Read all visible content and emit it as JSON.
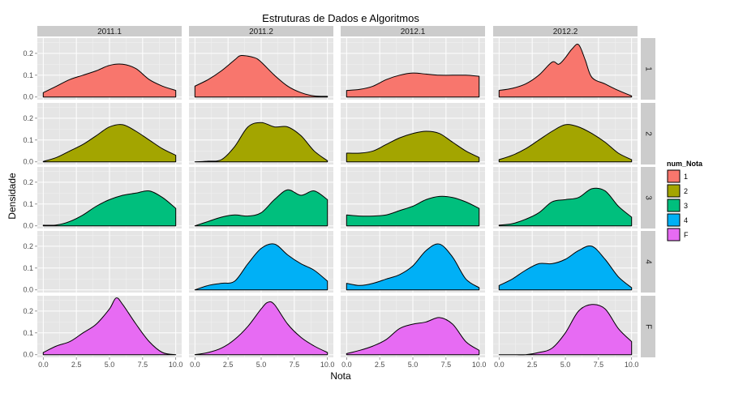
{
  "chart_data": {
    "type": "area",
    "title": "Estruturas de Dados e Algoritmos",
    "xlabel": "Nota",
    "ylabel": "Densidade",
    "xlim": [
      0,
      10
    ],
    "ylim": [
      0,
      0.27
    ],
    "x_ticks": [
      "0.0",
      "2.5",
      "5.0",
      "7.5",
      "10.0"
    ],
    "y_ticks": [
      "0.0",
      "0.1",
      "0.2"
    ],
    "grid": true,
    "facet_columns": [
      "2011.1",
      "2011.2",
      "2012.1",
      "2012.2"
    ],
    "facet_rows": [
      "1",
      "2",
      "3",
      "4",
      "F"
    ],
    "legend": {
      "title": "num_Nota",
      "position": "right",
      "items": [
        {
          "label": "1",
          "color": "#F8766D"
        },
        {
          "label": "2",
          "color": "#A3A500"
        },
        {
          "label": "3",
          "color": "#00BF7D"
        },
        {
          "label": "4",
          "color": "#00B0F6"
        },
        {
          "label": "F",
          "color": "#E76BF3"
        }
      ]
    },
    "panels": [
      {
        "row": "1",
        "col": "2011.1",
        "points": [
          [
            0,
            0.02
          ],
          [
            1,
            0.05
          ],
          [
            2,
            0.08
          ],
          [
            3,
            0.1
          ],
          [
            4,
            0.12
          ],
          [
            5,
            0.145
          ],
          [
            6,
            0.15
          ],
          [
            7,
            0.13
          ],
          [
            8,
            0.08
          ],
          [
            9,
            0.05
          ],
          [
            10,
            0.03
          ]
        ]
      },
      {
        "row": "1",
        "col": "2011.2",
        "points": [
          [
            0,
            0.05
          ],
          [
            1,
            0.08
          ],
          [
            2,
            0.12
          ],
          [
            3,
            0.17
          ],
          [
            3.5,
            0.19
          ],
          [
            4.5,
            0.18
          ],
          [
            5,
            0.16
          ],
          [
            6,
            0.1
          ],
          [
            7,
            0.05
          ],
          [
            8,
            0.02
          ],
          [
            9,
            0.005
          ],
          [
            10,
            0.003
          ]
        ]
      },
      {
        "row": "1",
        "col": "2012.1",
        "points": [
          [
            0,
            0.03
          ],
          [
            1,
            0.035
          ],
          [
            2,
            0.05
          ],
          [
            3,
            0.08
          ],
          [
            4,
            0.1
          ],
          [
            5,
            0.11
          ],
          [
            6,
            0.105
          ],
          [
            7,
            0.1
          ],
          [
            8,
            0.1
          ],
          [
            9,
            0.1
          ],
          [
            10,
            0.095
          ]
        ]
      },
      {
        "row": "1",
        "col": "2012.2",
        "points": [
          [
            0,
            0.03
          ],
          [
            1,
            0.04
          ],
          [
            2,
            0.06
          ],
          [
            3,
            0.1
          ],
          [
            4,
            0.16
          ],
          [
            4.5,
            0.15
          ],
          [
            5,
            0.18
          ],
          [
            5.5,
            0.22
          ],
          [
            6,
            0.24
          ],
          [
            6.5,
            0.17
          ],
          [
            7,
            0.09
          ],
          [
            8,
            0.06
          ],
          [
            9,
            0.03
          ],
          [
            10,
            0.005
          ]
        ]
      },
      {
        "row": "2",
        "col": "2011.1",
        "points": [
          [
            0,
            0.002
          ],
          [
            1,
            0.02
          ],
          [
            2,
            0.05
          ],
          [
            3,
            0.08
          ],
          [
            4,
            0.12
          ],
          [
            5,
            0.16
          ],
          [
            6,
            0.17
          ],
          [
            7,
            0.14
          ],
          [
            8,
            0.1
          ],
          [
            9,
            0.06
          ],
          [
            10,
            0.03
          ]
        ]
      },
      {
        "row": "2",
        "col": "2011.2",
        "points": [
          [
            0,
            0
          ],
          [
            1,
            0.003
          ],
          [
            2,
            0.01
          ],
          [
            3,
            0.07
          ],
          [
            4,
            0.16
          ],
          [
            5,
            0.18
          ],
          [
            6,
            0.16
          ],
          [
            7,
            0.16
          ],
          [
            8,
            0.12
          ],
          [
            9,
            0.05
          ],
          [
            10,
            0.005
          ]
        ]
      },
      {
        "row": "2",
        "col": "2012.1",
        "points": [
          [
            0,
            0.04
          ],
          [
            1,
            0.04
          ],
          [
            2,
            0.05
          ],
          [
            3,
            0.08
          ],
          [
            4,
            0.11
          ],
          [
            5,
            0.13
          ],
          [
            6,
            0.14
          ],
          [
            7,
            0.13
          ],
          [
            8,
            0.09
          ],
          [
            9,
            0.05
          ],
          [
            10,
            0.02
          ]
        ]
      },
      {
        "row": "2",
        "col": "2012.2",
        "points": [
          [
            0,
            0.01
          ],
          [
            1,
            0.03
          ],
          [
            2,
            0.06
          ],
          [
            3,
            0.1
          ],
          [
            4,
            0.14
          ],
          [
            5,
            0.17
          ],
          [
            6,
            0.16
          ],
          [
            7,
            0.13
          ],
          [
            8,
            0.09
          ],
          [
            9,
            0.04
          ],
          [
            10,
            0.01
          ]
        ]
      },
      {
        "row": "3",
        "col": "2011.1",
        "points": [
          [
            0,
            0.003
          ],
          [
            1,
            0.004
          ],
          [
            2,
            0.02
          ],
          [
            3,
            0.05
          ],
          [
            4,
            0.09
          ],
          [
            5,
            0.12
          ],
          [
            6,
            0.14
          ],
          [
            7,
            0.15
          ],
          [
            8,
            0.16
          ],
          [
            9,
            0.13
          ],
          [
            10,
            0.08
          ]
        ]
      },
      {
        "row": "3",
        "col": "2011.2",
        "points": [
          [
            0,
            0
          ],
          [
            1,
            0.02
          ],
          [
            2,
            0.04
          ],
          [
            3,
            0.05
          ],
          [
            4,
            0.045
          ],
          [
            5,
            0.06
          ],
          [
            6,
            0.12
          ],
          [
            7,
            0.165
          ],
          [
            8,
            0.14
          ],
          [
            9,
            0.16
          ],
          [
            10,
            0.12
          ]
        ]
      },
      {
        "row": "3",
        "col": "2012.1",
        "points": [
          [
            0,
            0.05
          ],
          [
            1,
            0.045
          ],
          [
            2,
            0.045
          ],
          [
            3,
            0.05
          ],
          [
            4,
            0.07
          ],
          [
            5,
            0.09
          ],
          [
            6,
            0.12
          ],
          [
            7,
            0.135
          ],
          [
            8,
            0.13
          ],
          [
            9,
            0.11
          ],
          [
            10,
            0.08
          ]
        ]
      },
      {
        "row": "3",
        "col": "2012.2",
        "points": [
          [
            0,
            0.003
          ],
          [
            1,
            0.01
          ],
          [
            2,
            0.03
          ],
          [
            3,
            0.06
          ],
          [
            4,
            0.11
          ],
          [
            5,
            0.12
          ],
          [
            6,
            0.13
          ],
          [
            7,
            0.17
          ],
          [
            8,
            0.16
          ],
          [
            9,
            0.09
          ],
          [
            10,
            0.04
          ]
        ]
      },
      {
        "row": "4",
        "col": "2011.2",
        "points": [
          [
            0,
            0
          ],
          [
            1,
            0.02
          ],
          [
            2,
            0.03
          ],
          [
            3,
            0.04
          ],
          [
            4,
            0.12
          ],
          [
            5,
            0.19
          ],
          [
            6,
            0.21
          ],
          [
            7,
            0.16
          ],
          [
            8,
            0.12
          ],
          [
            9,
            0.09
          ],
          [
            10,
            0.04
          ]
        ]
      },
      {
        "row": "4",
        "col": "2012.1",
        "points": [
          [
            0,
            0.03
          ],
          [
            1,
            0.02
          ],
          [
            2,
            0.03
          ],
          [
            3,
            0.05
          ],
          [
            4,
            0.07
          ],
          [
            5,
            0.11
          ],
          [
            6,
            0.18
          ],
          [
            7,
            0.21
          ],
          [
            8,
            0.15
          ],
          [
            9,
            0.05
          ],
          [
            10,
            0.01
          ]
        ]
      },
      {
        "row": "4",
        "col": "2012.2",
        "points": [
          [
            0,
            0.02
          ],
          [
            1,
            0.05
          ],
          [
            2,
            0.09
          ],
          [
            3,
            0.12
          ],
          [
            4,
            0.12
          ],
          [
            5,
            0.14
          ],
          [
            6,
            0.18
          ],
          [
            7,
            0.2
          ],
          [
            8,
            0.14
          ],
          [
            9,
            0.06
          ],
          [
            10,
            0.01
          ]
        ]
      },
      {
        "row": "F",
        "col": "2011.1",
        "points": [
          [
            0,
            0.01
          ],
          [
            1,
            0.04
          ],
          [
            2,
            0.06
          ],
          [
            3,
            0.1
          ],
          [
            4,
            0.14
          ],
          [
            5,
            0.21
          ],
          [
            5.5,
            0.26
          ],
          [
            6,
            0.23
          ],
          [
            7,
            0.14
          ],
          [
            8,
            0.06
          ],
          [
            9,
            0.01
          ],
          [
            10,
            0
          ]
        ]
      },
      {
        "row": "F",
        "col": "2011.2",
        "points": [
          [
            0,
            0
          ],
          [
            1,
            0.01
          ],
          [
            2,
            0.03
          ],
          [
            3,
            0.07
          ],
          [
            4,
            0.13
          ],
          [
            5,
            0.21
          ],
          [
            5.5,
            0.24
          ],
          [
            6,
            0.23
          ],
          [
            7,
            0.14
          ],
          [
            8,
            0.08
          ],
          [
            9,
            0.04
          ],
          [
            10,
            0.01
          ]
        ]
      },
      {
        "row": "F",
        "col": "2012.1",
        "points": [
          [
            0,
            0.005
          ],
          [
            1,
            0.02
          ],
          [
            2,
            0.04
          ],
          [
            3,
            0.07
          ],
          [
            4,
            0.12
          ],
          [
            5,
            0.14
          ],
          [
            6,
            0.15
          ],
          [
            7,
            0.17
          ],
          [
            8,
            0.14
          ],
          [
            9,
            0.06
          ],
          [
            10,
            0.02
          ]
        ]
      },
      {
        "row": "F",
        "col": "2012.2",
        "points": [
          [
            0,
            0
          ],
          [
            1,
            0
          ],
          [
            2,
            0
          ],
          [
            3,
            0.01
          ],
          [
            4,
            0.03
          ],
          [
            5,
            0.1
          ],
          [
            6,
            0.2
          ],
          [
            7,
            0.23
          ],
          [
            8,
            0.21
          ],
          [
            9,
            0.12
          ],
          [
            10,
            0.06
          ]
        ]
      }
    ]
  }
}
